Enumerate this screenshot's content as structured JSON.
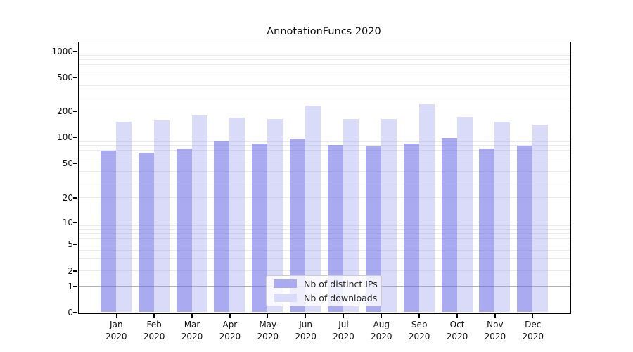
{
  "title": "AnnotationFuncs 2020",
  "chart_data": {
    "type": "bar",
    "title": "AnnotationFuncs 2020",
    "categories": [
      "Jan 2020",
      "Feb 2020",
      "Mar 2020",
      "Apr 2020",
      "May 2020",
      "Jun 2020",
      "Jul 2020",
      "Aug 2020",
      "Sep 2020",
      "Oct 2020",
      "Nov 2020",
      "Dec 2020"
    ],
    "series": [
      {
        "name": "Nb of distinct IPs",
        "color": "#aaaaf3",
        "values": [
          70,
          66,
          74,
          91,
          84,
          96,
          80,
          77,
          84,
          97,
          73,
          79
        ]
      },
      {
        "name": "Nb of downloads",
        "color": "#dadaf9",
        "values": [
          150,
          156,
          178,
          168,
          160,
          229,
          160,
          162,
          239,
          172,
          150,
          140
        ]
      }
    ],
    "yscale": "symlog",
    "yticks": [
      0,
      1,
      2,
      5,
      10,
      20,
      50,
      100,
      200,
      500,
      1000
    ],
    "ylim": [
      0,
      1300
    ],
    "xlabel": "",
    "ylabel": "",
    "grid": true,
    "legend_position": "lower center",
    "grid_minor_color": "#ebebeb",
    "grid_major_color": "#b3b3b3"
  }
}
